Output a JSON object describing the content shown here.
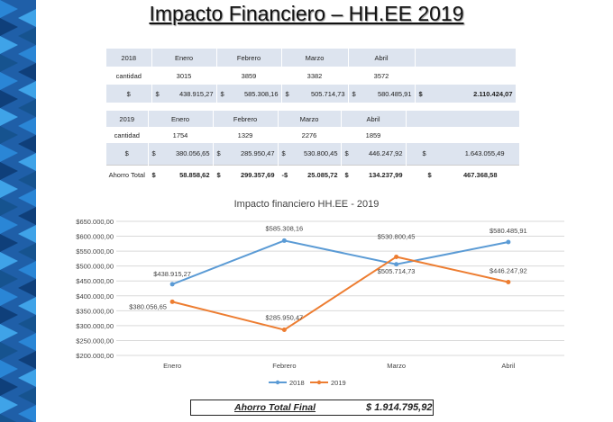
{
  "title": "Impacto Financiero – HH.EE 2019",
  "table_2018": {
    "year": "2018",
    "months": [
      "Enero",
      "Febrero",
      "Marzo",
      "Abril"
    ],
    "row_label_qty": "cantidad",
    "qty": [
      "3015",
      "3859",
      "3382",
      "3572"
    ],
    "currency": "$",
    "amounts": [
      "438.915,27",
      "585.308,16",
      "505.714,73",
      "580.485,91"
    ],
    "total": "2.110.424,07"
  },
  "table_2019": {
    "year": "2019",
    "months": [
      "Enero",
      "Febrero",
      "Marzo",
      "Abril"
    ],
    "row_label_qty": "cantidad",
    "qty": [
      "1754",
      "1329",
      "2276",
      "1859"
    ],
    "currency": "$",
    "amounts": [
      "380.056,65",
      "285.950,47",
      "530.800,45",
      "446.247,92"
    ],
    "total": "1.643.055,49",
    "savings_label": "Ahorro Total",
    "savings": [
      "58.858,62",
      "299.357,69",
      "25.085,72",
      "134.237,99"
    ],
    "savings_prefix": [
      "$",
      "$",
      "-$",
      "$"
    ],
    "savings_total": "467.368,58"
  },
  "chart_data": {
    "type": "line",
    "title": "Impacto financiero HH.EE - 2019",
    "categories": [
      "Enero",
      "Febrero",
      "Marzo",
      "Abril"
    ],
    "series": [
      {
        "name": "2018",
        "color": "#5b9bd5",
        "values": [
          438915.27,
          585308.16,
          505714.73,
          580485.91
        ],
        "labels": [
          "$438.915,27",
          "$585.308,16",
          "$505.714,73",
          "$580.485,91"
        ]
      },
      {
        "name": "2019",
        "color": "#ed7d31",
        "values": [
          380056.65,
          285950.47,
          530800.45,
          446247.92
        ],
        "labels": [
          "$380.056,65",
          "$285.950,47",
          "$530.800,45",
          "$446.247,92"
        ]
      }
    ],
    "ylim": [
      200000,
      650000
    ],
    "yticks": [
      "$200.000,00",
      "$250.000,00",
      "$300.000,00",
      "$350.000,00",
      "$400.000,00",
      "$450.000,00",
      "$500.000,00",
      "$550.000,00",
      "$600.000,00",
      "$650.000,00"
    ],
    "legend": "bottom",
    "grid": true
  },
  "footer": {
    "label": "Ahorro Total Final",
    "value": "$ 1.914.795,92"
  }
}
